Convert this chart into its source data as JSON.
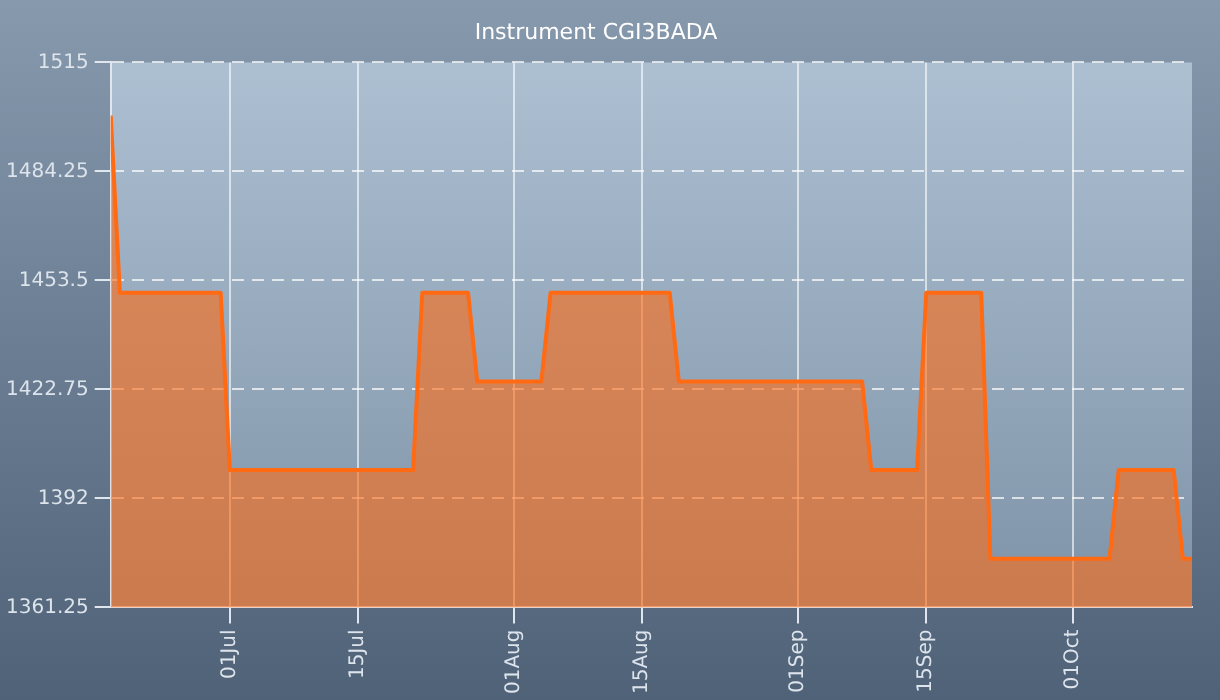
{
  "chart_data": {
    "type": "area",
    "title": "Instrument CGI3BADA",
    "x": [
      "--06-18",
      "--06-19",
      "--06-30",
      "--07-01",
      "--07-21",
      "--07-22",
      "--07-27",
      "--07-28",
      "--08-04",
      "--08-05",
      "--08-18",
      "--08-19",
      "--09-08",
      "--09-09",
      "--09-14",
      "--09-15",
      "--09-21",
      "--09-22",
      "--10-05",
      "--10-06",
      "--10-12",
      "--10-13",
      "--10-14"
    ],
    "values": [
      1500,
      1450,
      1450,
      1400,
      1400,
      1450,
      1450,
      1425,
      1425,
      1450,
      1450,
      1425,
      1425,
      1400,
      1400,
      1450,
      1450,
      1375,
      1375,
      1400,
      1400,
      1375,
      1375
    ],
    "color": "#ff6a13",
    "xlim": [
      "--06-18",
      "--10-14"
    ],
    "xticks": [
      {
        "value": "--07-01",
        "label": "01Jul"
      },
      {
        "value": "--07-15",
        "label": "15Jul"
      },
      {
        "value": "--08-01",
        "label": "01Aug"
      },
      {
        "value": "--08-15",
        "label": "15Aug"
      },
      {
        "value": "--09-01",
        "label": "01Sep"
      },
      {
        "value": "--09-15",
        "label": "15Sep"
      },
      {
        "value": "--10-01",
        "label": "01Oct"
      }
    ],
    "ylim": [
      1361.25,
      1515
    ],
    "yticks": [
      1361.25,
      1392,
      1422.75,
      1453.5,
      1484.25,
      1515
    ],
    "grid": true,
    "legend": false,
    "marker": "none",
    "line_style": "solid"
  }
}
